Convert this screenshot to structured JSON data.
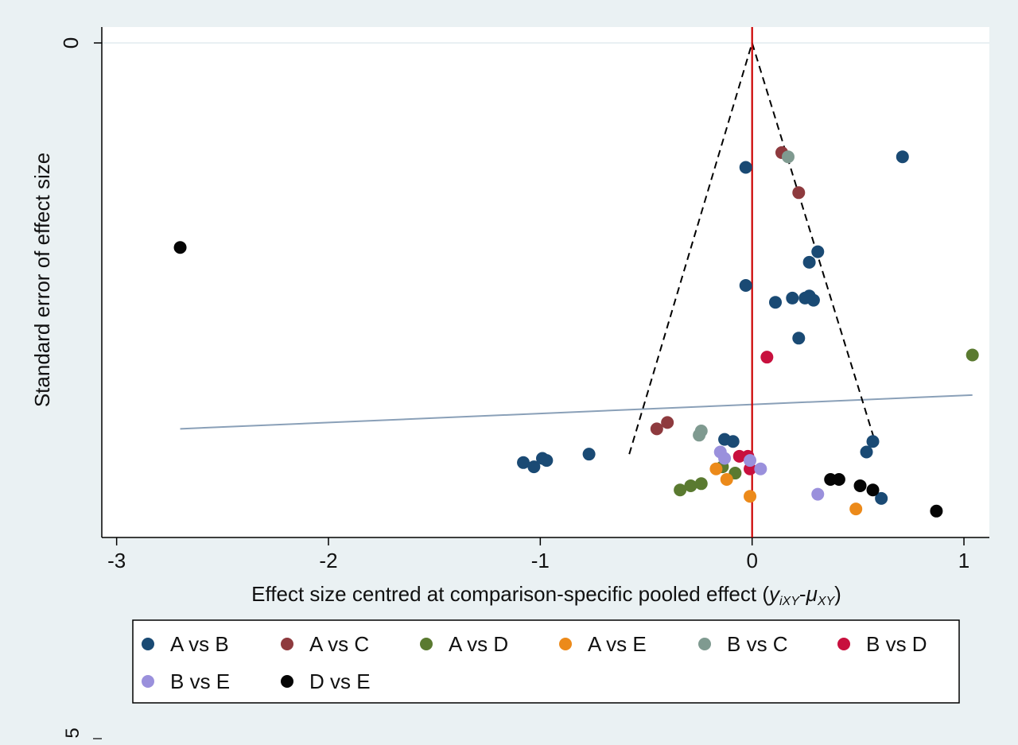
{
  "chart_data": {
    "type": "scatter",
    "title": "",
    "xlabel_main": "Effect size centred at comparison-specific pooled effect (",
    "xlabel_math_y": "y",
    "xlabel_math_y_sub": "iXY",
    "xlabel_math_minus": "-",
    "xlabel_math_mu": "μ",
    "xlabel_math_mu_sub": "XY",
    "xlabel_close": ")",
    "ylabel": "Standard error of effect size",
    "xlim": [
      -3.07,
      1.12
    ],
    "ylim": [
      0,
      2.3
    ],
    "y_reversed": true,
    "xticks": [
      -3,
      -2,
      -1,
      0,
      1
    ],
    "xtick_labels": [
      "-3",
      "-2",
      "-1",
      "0",
      "1"
    ],
    "yticks": [
      0
    ],
    "ytick_labels": [
      "0"
    ],
    "bottom_cut_tick_label": "5",
    "legend_position": "bottom",
    "series": [
      {
        "name": "A vs B",
        "color": "#1a4a74",
        "points": [
          [
            -0.03,
            0.59
          ],
          [
            0.71,
            0.54
          ],
          [
            -0.03,
            1.15
          ],
          [
            0.31,
            0.99
          ],
          [
            0.27,
            1.04
          ],
          [
            0.11,
            1.23
          ],
          [
            0.19,
            1.21
          ],
          [
            0.25,
            1.21
          ],
          [
            0.27,
            1.2
          ],
          [
            0.29,
            1.22
          ],
          [
            0.22,
            1.4
          ],
          [
            0.57,
            1.89
          ],
          [
            0.54,
            1.94
          ],
          [
            -0.77,
            1.95
          ],
          [
            -1.08,
            1.99
          ],
          [
            -1.03,
            2.01
          ],
          [
            -0.99,
            1.97
          ],
          [
            -0.97,
            1.98
          ],
          [
            -0.13,
            1.88
          ],
          [
            -0.09,
            1.89
          ],
          [
            0.61,
            2.16
          ]
        ]
      },
      {
        "name": "A vs C",
        "color": "#8e3a3e",
        "points": [
          [
            0.14,
            0.52
          ],
          [
            0.22,
            0.71
          ],
          [
            -0.45,
            1.83
          ],
          [
            -0.4,
            1.8
          ]
        ]
      },
      {
        "name": "A vs D",
        "color": "#5a7a30",
        "points": [
          [
            1.04,
            1.48
          ],
          [
            -0.34,
            2.12
          ],
          [
            -0.29,
            2.1
          ],
          [
            -0.24,
            2.09
          ],
          [
            -0.08,
            2.04
          ],
          [
            -0.14,
            2.01
          ]
        ]
      },
      {
        "name": "A vs E",
        "color": "#ec8a1a",
        "points": [
          [
            -0.17,
            2.02
          ],
          [
            -0.12,
            2.07
          ],
          [
            -0.01,
            2.15
          ],
          [
            0.49,
            2.21
          ]
        ]
      },
      {
        "name": "B vs C",
        "color": "#7f9a90",
        "points": [
          [
            0.17,
            0.54
          ],
          [
            -0.24,
            1.84
          ],
          [
            -0.25,
            1.86
          ]
        ]
      },
      {
        "name": "B vs D",
        "color": "#c8103e",
        "points": [
          [
            0.07,
            1.49
          ],
          [
            -0.06,
            1.96
          ],
          [
            -0.02,
            1.96
          ],
          [
            -0.01,
            2.02
          ]
        ]
      },
      {
        "name": "B vs E",
        "color": "#9a90dc",
        "points": [
          [
            -0.15,
            1.94
          ],
          [
            -0.13,
            1.97
          ],
          [
            -0.01,
            1.98
          ],
          [
            0.04,
            2.02
          ],
          [
            0.31,
            2.14
          ]
        ]
      },
      {
        "name": "D vs E",
        "color": "#050505",
        "points": [
          [
            -2.7,
            0.97
          ],
          [
            0.37,
            2.07
          ],
          [
            0.41,
            2.07
          ],
          [
            0.51,
            2.1
          ],
          [
            0.57,
            2.12
          ],
          [
            0.87,
            2.22
          ]
        ]
      }
    ],
    "fitted_line": {
      "color": "#8aa0b8",
      "points": [
        [
          -2.7,
          1.83
        ],
        [
          1.04,
          1.67
        ]
      ]
    },
    "funnel": {
      "color": "#000000",
      "points": [
        [
          -0.58,
          1.95
        ],
        [
          0,
          0
        ],
        [
          0.58,
          1.89
        ]
      ]
    },
    "zero_line": {
      "x": 0,
      "color": "#cc0000"
    }
  }
}
